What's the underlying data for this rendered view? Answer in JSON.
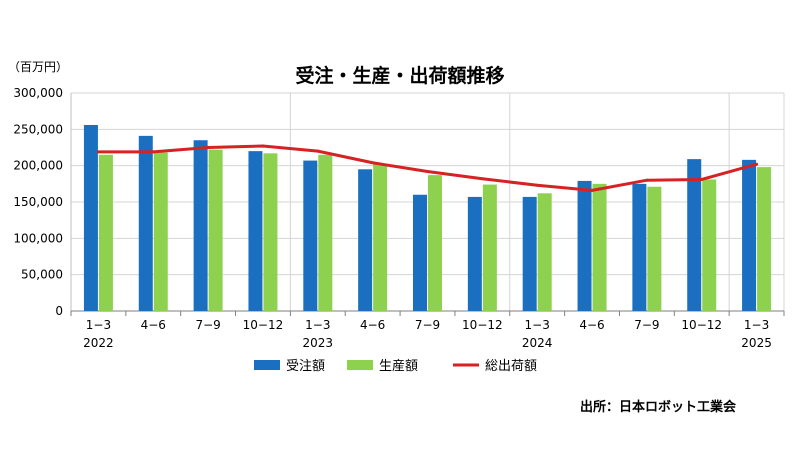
{
  "chart_data": {
    "type": "bar",
    "title": "受注・生産・出荷額推移",
    "unit_label": "（百万円）",
    "categories": [
      "1−3",
      "4−6",
      "7−9",
      "10−12",
      "1−3",
      "4−6",
      "7−9",
      "10−12",
      "1−3",
      "4−6",
      "7−9",
      "10−12",
      "1−3"
    ],
    "years": [
      "2022",
      "2023",
      "2024",
      "2025"
    ],
    "year_positions": [
      0,
      4,
      8,
      12
    ],
    "ylim": [
      0,
      300000
    ],
    "yticks": [
      0,
      50000,
      100000,
      150000,
      200000,
      250000,
      300000
    ],
    "ytick_labels": [
      "0",
      "50,000",
      "100,000",
      "150,000",
      "200,000",
      "250,000",
      "300,000"
    ],
    "grid": true,
    "legend_position": "bottom",
    "series": [
      {
        "name": "受注額",
        "type": "bar",
        "color": "#1a6fc0",
        "values": [
          256000,
          241000,
          235000,
          220000,
          207000,
          195000,
          160000,
          157000,
          157000,
          179000,
          175000,
          209000,
          208000
        ]
      },
      {
        "name": "生産額",
        "type": "bar",
        "color": "#8ed14f",
        "values": [
          215000,
          218000,
          222000,
          217000,
          215000,
          203000,
          187000,
          174000,
          162000,
          175000,
          171000,
          181000,
          198000
        ]
      },
      {
        "name": "総出荷額",
        "type": "line",
        "color": "#d62222",
        "values": [
          219000,
          219000,
          225000,
          227000,
          220000,
          204000,
          192000,
          182000,
          173000,
          166000,
          180000,
          181000,
          202000
        ]
      }
    ]
  },
  "source_note": "出所：日本ロボット工業会"
}
